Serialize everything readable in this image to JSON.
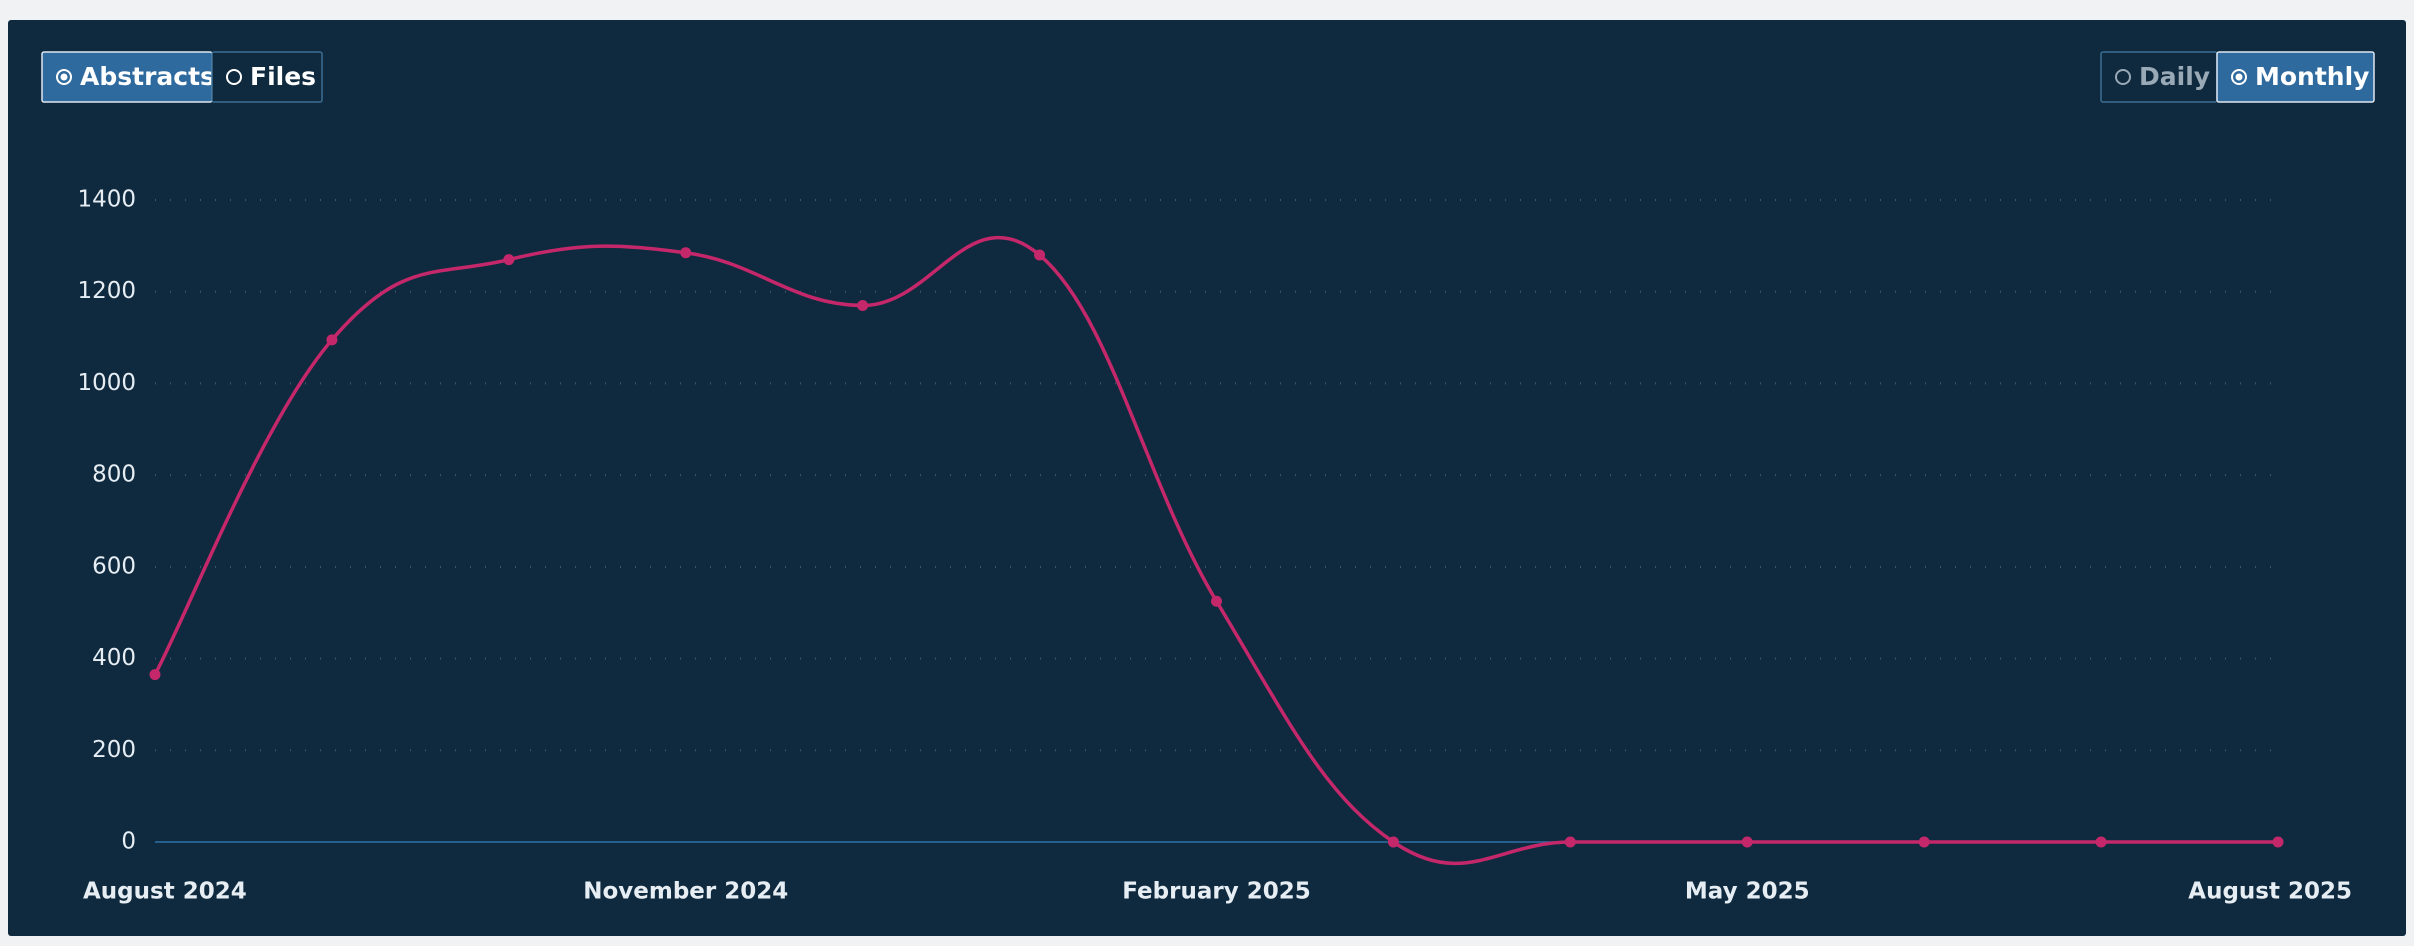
{
  "toggles": {
    "dataset": [
      {
        "label": "Abstracts",
        "selected": true
      },
      {
        "label": "Files",
        "selected": false
      }
    ],
    "period": [
      {
        "label": "Daily",
        "selected": false
      },
      {
        "label": "Monthly",
        "selected": true
      }
    ]
  },
  "chart_data": {
    "type": "line",
    "categories": [
      "August 2024",
      null,
      null,
      "November 2024",
      null,
      null,
      "February 2025",
      null,
      null,
      "May 2025",
      null,
      null,
      "August 2025"
    ],
    "series": [
      {
        "name": "Abstracts",
        "color": "#c4286a",
        "values": [
          365,
          1095,
          1270,
          1285,
          1170,
          1280,
          525,
          0,
          0,
          0,
          0,
          0,
          0
        ]
      }
    ],
    "ylim": [
      0,
      1400
    ],
    "yticks": [
      0,
      200,
      400,
      600,
      800,
      1000,
      1200,
      1400
    ],
    "grid": true
  }
}
